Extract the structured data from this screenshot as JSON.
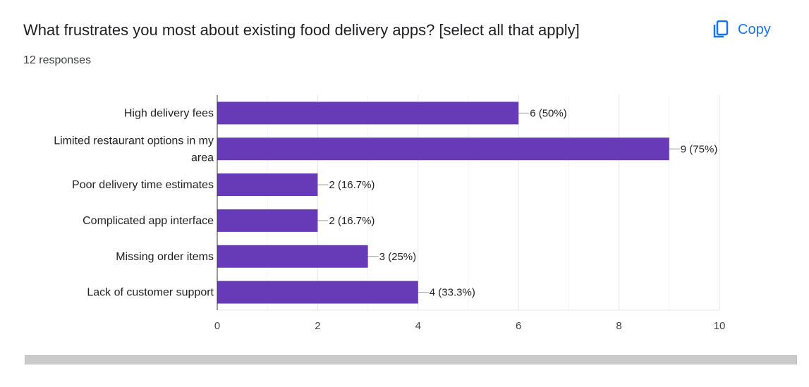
{
  "header": {
    "title": "What frustrates you most about existing food delivery apps? [select all that apply]",
    "responses": "12 responses",
    "copy_label": "Copy",
    "copy_icon": "copy-icon",
    "accent": "#1a73e8"
  },
  "chart_data": {
    "type": "bar",
    "orientation": "horizontal",
    "categories": [
      "High delivery fees",
      [
        "Limited restaurant options in my",
        "area"
      ],
      "Poor delivery time estimates",
      "Complicated app interface",
      "Missing order items",
      "Lack of customer support"
    ],
    "values": [
      6,
      9,
      2,
      2,
      3,
      4
    ],
    "data_labels": [
      "6 (50%)",
      "9 (75%)",
      "2 (16.7%)",
      "2 (16.7%)",
      "3 (25%)",
      "4 (33.3%)"
    ],
    "xlim": [
      0,
      10
    ],
    "xticks": [
      "0",
      "2",
      "4",
      "6",
      "8",
      "10"
    ],
    "grid": true,
    "bar_color": "#673ab7"
  }
}
